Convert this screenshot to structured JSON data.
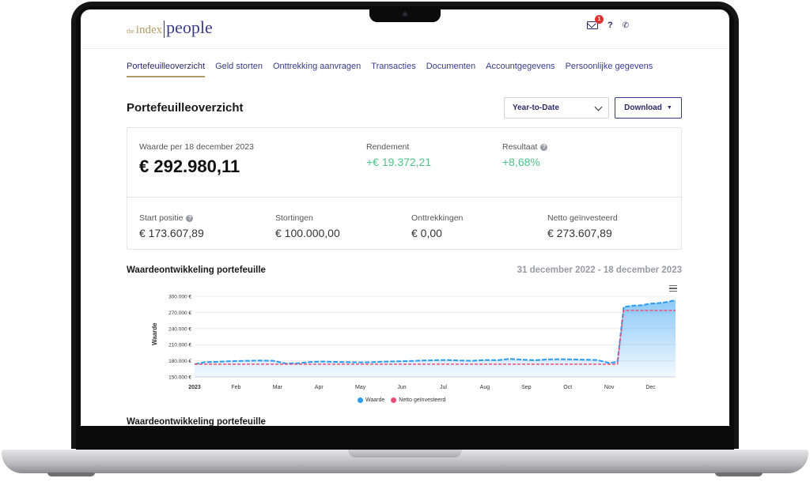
{
  "logo": {
    "the": "the",
    "index": "index",
    "people": "people"
  },
  "header": {
    "mail_badge": "1",
    "help": "?",
    "phone": "✆"
  },
  "nav": [
    {
      "label": "Portefeuilleoverzicht",
      "active": true
    },
    {
      "label": "Geld storten",
      "active": false
    },
    {
      "label": "Onttrekking aanvragen",
      "active": false
    },
    {
      "label": "Transacties",
      "active": false
    },
    {
      "label": "Documenten",
      "active": false
    },
    {
      "label": "Accountgegevens",
      "active": false
    },
    {
      "label": "Persoonlijke gegevens",
      "active": false
    }
  ],
  "page": {
    "title": "Portefeuilleoverzicht",
    "period_select": "Year-to-Date",
    "download_label": "Download"
  },
  "summary": {
    "value_label": "Waarde per 18 december 2023",
    "value": "€ 292.980,11",
    "return_label": "Rendement",
    "return": "+€ 19.372,21",
    "result_label": "Resultaat",
    "result": "+8,68%",
    "start_label": "Start positie",
    "start": "€ 173.607,89",
    "deposits_label": "Stortingen",
    "deposits": "€ 100.000,00",
    "withdrawals_label": "Onttrekkingen",
    "withdrawals": "€ 0,00",
    "net_label": "Netto geïnvesteerd",
    "net": "€ 273.607,89"
  },
  "chart_section": {
    "title": "Waardeontwikkeling portefeuille",
    "range": "31 december 2022 - 18 december 2023",
    "second_title": "Waardeontwikkeling portefeuille"
  },
  "colors": {
    "waarde": "#2b9bf0",
    "netto": "#e8507a",
    "accent": "#3a3a8a",
    "gold": "#b09a6a",
    "green": "#4cc38a"
  },
  "chart_data": {
    "type": "area",
    "ylabel": "Waarde",
    "ylim": [
      150000,
      300000
    ],
    "yticks": [
      150000,
      180000,
      210000,
      240000,
      270000,
      300000
    ],
    "ytick_labels": [
      "150.000 €",
      "180.000 €",
      "210.000 €",
      "240.000 €",
      "270.000 €",
      "300.000 €"
    ],
    "xlim": [
      0,
      11.6
    ],
    "xticks": [
      0,
      1,
      2,
      3,
      4,
      5,
      6,
      7,
      8,
      9,
      10,
      11
    ],
    "xtick_labels": [
      "2023",
      "Feb",
      "Mar",
      "Apr",
      "May",
      "Jun",
      "Jul",
      "Aug",
      "Sep",
      "Oct",
      "Nov",
      "Dec"
    ],
    "legend_placement": "bottom-center",
    "series": [
      {
        "name": "Waarde",
        "x": [
          0,
          0.25,
          0.5,
          0.8,
          1.0,
          1.3,
          1.6,
          1.9,
          2.2,
          2.5,
          2.8,
          3.1,
          3.4,
          3.7,
          4.0,
          4.3,
          4.6,
          4.9,
          5.2,
          5.5,
          5.8,
          6.1,
          6.4,
          6.7,
          7.0,
          7.3,
          7.6,
          7.9,
          8.2,
          8.5,
          8.8,
          9.1,
          9.4,
          9.7,
          10.0,
          10.2,
          10.35,
          10.55,
          10.8,
          11.0,
          11.2,
          11.4,
          11.6
        ],
        "values": [
          173600,
          177500,
          178000,
          179000,
          179500,
          180000,
          180500,
          180000,
          175000,
          175500,
          178000,
          178500,
          178000,
          177500,
          177000,
          177500,
          178500,
          179000,
          179500,
          180500,
          181000,
          181500,
          180500,
          180000,
          181500,
          181000,
          183500,
          182000,
          181000,
          182500,
          183000,
          182500,
          182000,
          181500,
          176000,
          178000,
          280000,
          282500,
          283500,
          286500,
          287500,
          289500,
          293000
        ]
      },
      {
        "name": "Netto geïnvesteerd",
        "x": [
          0,
          10.2,
          10.35,
          11.6
        ],
        "values": [
          173608,
          173608,
          273608,
          273608
        ]
      }
    ]
  }
}
